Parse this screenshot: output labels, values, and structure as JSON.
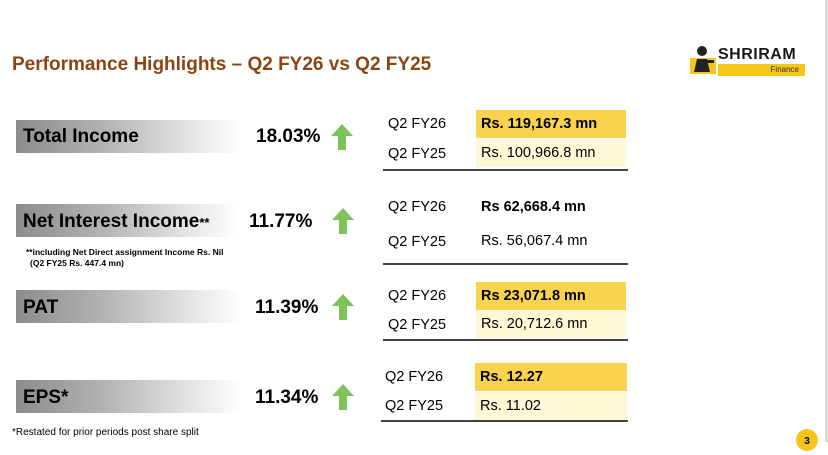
{
  "title": "Performance Highlights – Q2 FY26 vs Q2 FY25",
  "logo": {
    "name": "SHRIRAM",
    "sub": "Finance"
  },
  "colors": {
    "title": "#8b4513",
    "highlight": "#f9d24e",
    "pale": "#fff7d6",
    "arrow": "#7cc45a"
  },
  "metrics": [
    {
      "label": "Total Income",
      "change": "18.03%",
      "direction": "up",
      "rows": [
        {
          "period": "Q2 FY26",
          "value": "Rs. 119,167.3 mn"
        },
        {
          "period": "Q2 FY25",
          "value": "Rs. 100,966.8 mn"
        }
      ]
    },
    {
      "label": "Net Interest Income",
      "label_suffix": "**",
      "change": "11.77%",
      "direction": "up",
      "note_line1": "**including Net Direct assignment Income Rs. Nil",
      "note_line2": "(Q2 FY25 Rs. 447.4 mn)",
      "rows": [
        {
          "period": "Q2 FY26",
          "value": "Rs  62,668.4 mn"
        },
        {
          "period": "Q2 FY25",
          "value": "Rs. 56,067.4 mn"
        }
      ]
    },
    {
      "label": "PAT",
      "change": "11.39%",
      "direction": "up",
      "rows": [
        {
          "period": "Q2 FY26",
          "value": "Rs  23,071.8 mn"
        },
        {
          "period": "Q2 FY25",
          "value": "Rs. 20,712.6 mn"
        }
      ]
    },
    {
      "label": "EPS*",
      "change": "11.34%",
      "direction": "up",
      "rows": [
        {
          "period": "Q2 FY26",
          "value": "Rs. 12.27"
        },
        {
          "period": "Q2 FY25",
          "value": "Rs. 11.02"
        }
      ]
    }
  ],
  "footnote": "*Restated for prior periods post share split",
  "page_number": "3"
}
